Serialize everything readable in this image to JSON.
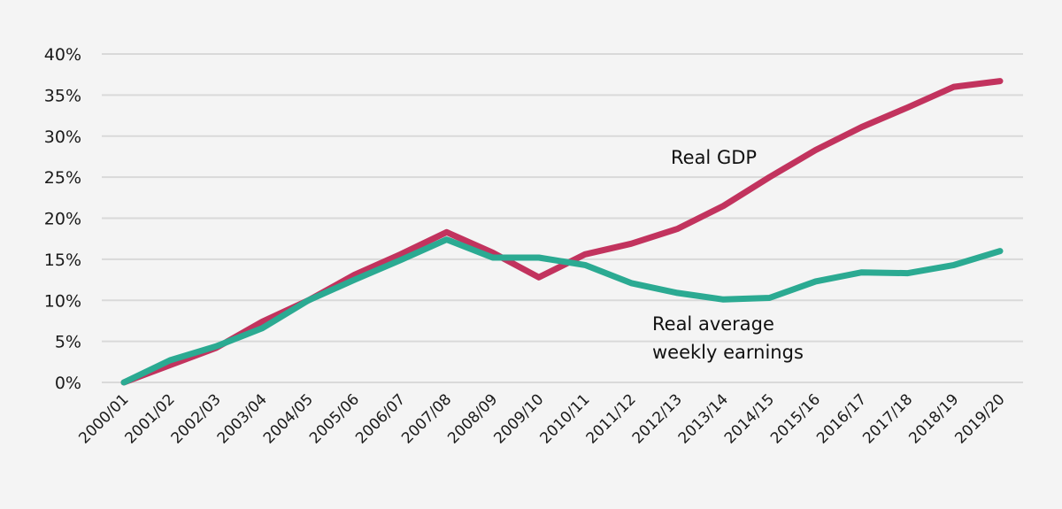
{
  "chart_data": {
    "type": "line",
    "title": "",
    "xlabel": "",
    "ylabel": "",
    "ylim": [
      0,
      40
    ],
    "yticks": [
      0,
      5,
      10,
      15,
      20,
      25,
      30,
      35,
      40
    ],
    "ytick_labels": [
      "0%",
      "5%",
      "10%",
      "15%",
      "20%",
      "25%",
      "30%",
      "35%",
      "40%"
    ],
    "grid": "horizontal",
    "legend": "none (inline annotations)",
    "categories": [
      "2000/01",
      "2001/02",
      "2002/03",
      "2003/04",
      "2004/05",
      "2005/06",
      "2006/07",
      "2007/08",
      "2008/09",
      "2009/10",
      "2010/11",
      "2011/12",
      "2012/13",
      "2013/14",
      "2014/15",
      "2015/16",
      "2016/17",
      "2017/18",
      "2018/19",
      "2019/20"
    ],
    "series": [
      {
        "name": "Real GDP",
        "color": "#c2335e",
        "values": [
          0,
          2.1,
          4.2,
          7.4,
          10.0,
          13.1,
          15.6,
          18.3,
          15.8,
          12.8,
          15.6,
          16.9,
          18.7,
          21.5,
          25.0,
          28.3,
          31.1,
          33.5,
          36.0,
          36.7
        ]
      },
      {
        "name": "Real average weekly earnings",
        "color": "#2baa92",
        "values": [
          0,
          2.7,
          4.4,
          6.6,
          10.0,
          12.5,
          14.9,
          17.4,
          15.2,
          15.2,
          14.3,
          12.1,
          10.9,
          10.1,
          10.3,
          12.3,
          13.4,
          13.3,
          14.3,
          16.0
        ]
      }
    ],
    "annotations": [
      {
        "series": "Real GDP",
        "lines": [
          "Real GDP"
        ]
      },
      {
        "series": "Real average weekly earnings",
        "lines": [
          "Real average",
          "weekly earnings"
        ]
      }
    ]
  }
}
